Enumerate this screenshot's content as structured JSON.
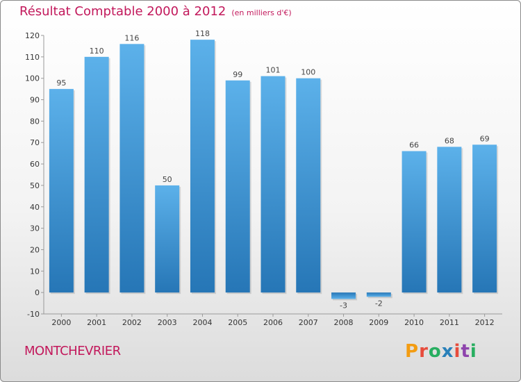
{
  "header": {
    "title": "Résultat Comptable 2000 à 2012",
    "subtitle": "(en milliers d'€)"
  },
  "footer": {
    "commune": "MONTCHEVRIER",
    "logo_text": "Proxiti"
  },
  "colors": {
    "title": "#c2185b",
    "bar_light": "#5aaee6",
    "bar_dark": "#2a78b8",
    "logo": [
      "#f39c12",
      "#e74c3c",
      "#27ae60",
      "#2980b9",
      "#e74c3c",
      "#8e44ad",
      "#27ae60"
    ]
  },
  "chart_data": {
    "type": "bar",
    "title": "Résultat Comptable 2000 à 2012",
    "subtitle": "(en milliers d'€)",
    "categories": [
      "2000",
      "2001",
      "2002",
      "2003",
      "2004",
      "2005",
      "2006",
      "2007",
      "2008",
      "2009",
      "2010",
      "2011",
      "2012"
    ],
    "values": [
      95,
      110,
      116,
      50,
      118,
      99,
      101,
      100,
      -3,
      -2,
      66,
      68,
      69
    ],
    "ylim": [
      -10,
      120
    ],
    "yticks": [
      -10,
      0,
      10,
      20,
      30,
      40,
      50,
      60,
      70,
      80,
      90,
      100,
      110,
      120
    ],
    "grid": false,
    "xlabel": "",
    "ylabel": ""
  }
}
